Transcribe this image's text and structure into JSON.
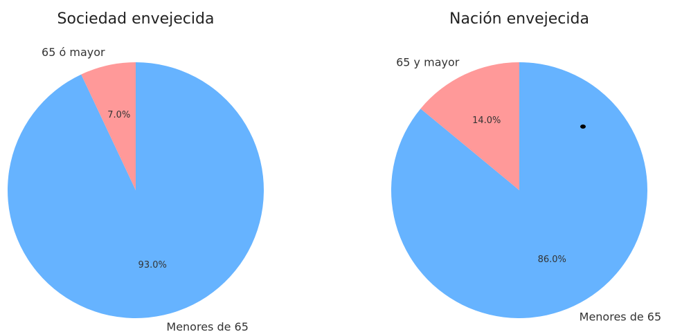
{
  "chart_data": [
    {
      "type": "pie",
      "title": "Sociedad envejecida",
      "categories": [
        "65 ó mayor",
        "Menores de 65"
      ],
      "values": [
        7,
        93
      ],
      "value_labels": [
        "7.0%",
        "93.0%"
      ],
      "colors": [
        "#ff9999",
        "#66b3ff"
      ]
    },
    {
      "type": "pie",
      "title": "Nación envejecida",
      "categories": [
        "65 y mayor",
        "Menores de 65"
      ],
      "values": [
        14,
        86
      ],
      "value_labels": [
        "14.0%",
        "86.0%"
      ],
      "colors": [
        "#ff9999",
        "#66b3ff"
      ]
    }
  ]
}
